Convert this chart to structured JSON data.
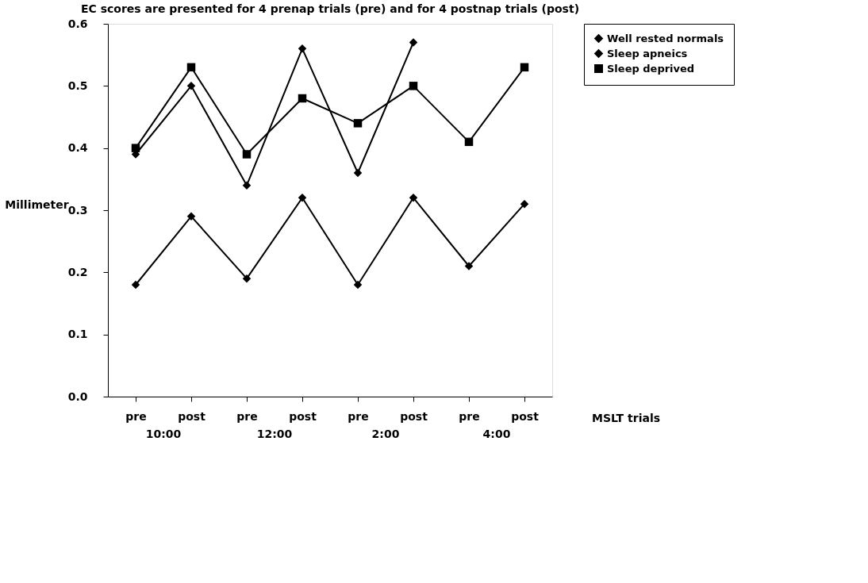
{
  "chart_data": {
    "type": "line",
    "title": "EC scores are presented for 4 prenap trials (pre) and for 4 postnap trials (post)",
    "xlabel": "MSLT trials",
    "ylabel": "Millimeter",
    "categories": [
      "pre",
      "post",
      "pre",
      "post",
      "pre",
      "post",
      "pre",
      "post"
    ],
    "annotations": [
      "10:00",
      "12:00",
      "2:00",
      "4:00"
    ],
    "series": [
      {
        "name": "Well rested normals",
        "color": "#000000",
        "marker": "diamond",
        "values": [
          0.39,
          0.5,
          0.34,
          0.56,
          0.36,
          0.57,
          null,
          null
        ]
      },
      {
        "name": "Sleep apneics",
        "color": "#000000",
        "marker": "diamond",
        "values": [
          0.18,
          0.29,
          0.19,
          0.32,
          0.18,
          0.32,
          0.21,
          0.31
        ]
      },
      {
        "name": "Sleep deprived",
        "color": "#000000",
        "marker": "square",
        "values": [
          0.4,
          0.53,
          0.39,
          0.48,
          0.44,
          0.5,
          0.41,
          0.53
        ]
      }
    ],
    "ylim": [
      0,
      0.6
    ],
    "yticks": [
      {
        "value": 0,
        "label": "0.0"
      },
      0.1,
      0.2,
      0.3,
      0.4,
      0.5,
      0.6
    ],
    "grid": false,
    "legend": "right",
    "line_style": "solid"
  }
}
